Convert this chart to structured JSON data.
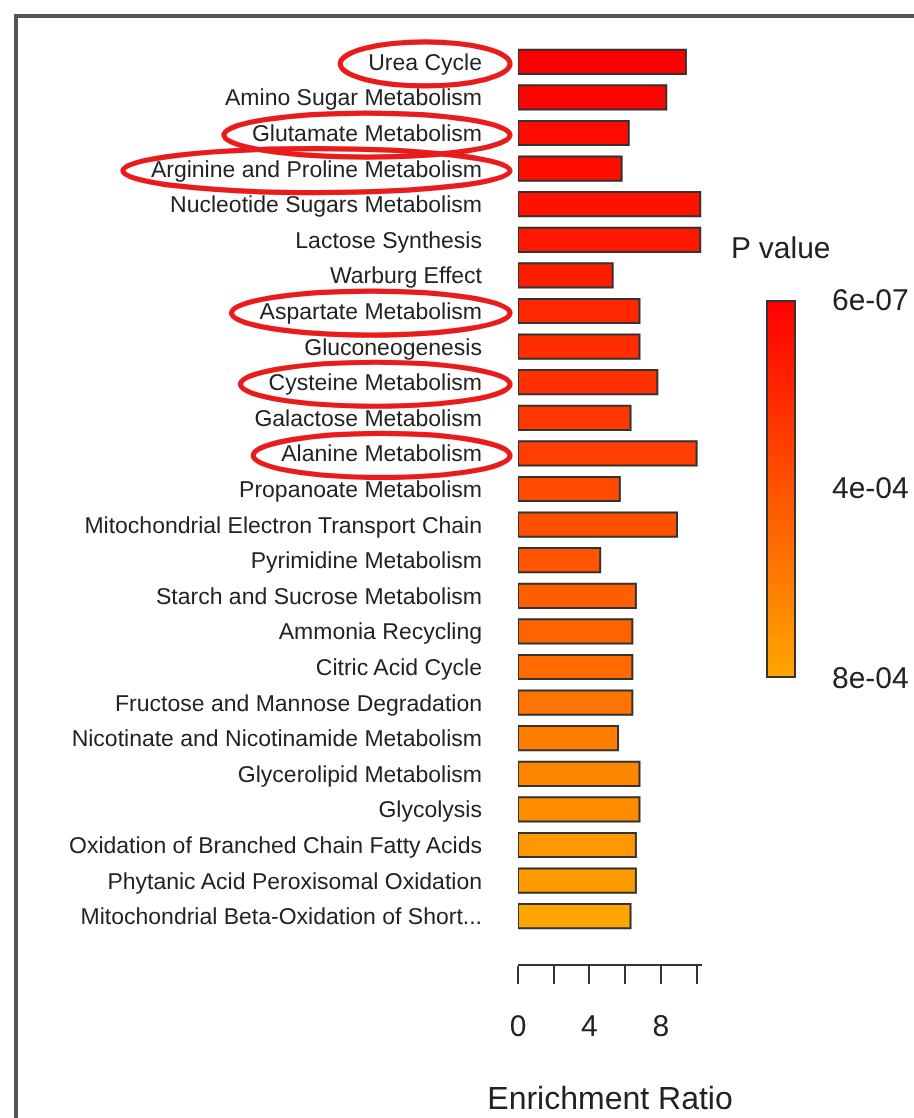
{
  "chart_data": {
    "type": "bar",
    "orientation": "horizontal",
    "categories": [
      "Urea Cycle",
      "Amino Sugar Metabolism",
      "Glutamate Metabolism",
      "Arginine and Proline Metabolism",
      "Nucleotide Sugars Metabolism",
      "Lactose Synthesis",
      "Warburg Effect",
      "Aspartate Metabolism",
      "Gluconeogenesis",
      "Cysteine Metabolism",
      "Galactose Metabolism",
      "Alanine Metabolism",
      "Propanoate Metabolism",
      "Mitochondrial Electron Transport Chain",
      "Pyrimidine Metabolism",
      "Starch and Sucrose Metabolism",
      "Ammonia Recycling",
      "Citric Acid Cycle",
      "Fructose and Mannose Degradation",
      "Nicotinate and Nicotinamide Metabolism",
      "Glycerolipid Metabolism",
      "Glycolysis",
      "Oxidation of Branched Chain Fatty Acids",
      "Phytanic Acid Peroxisomal Oxidation",
      "Mitochondrial Beta-Oxidation of Short..."
    ],
    "values": [
      9.4,
      8.3,
      6.2,
      5.8,
      10.2,
      10.2,
      5.3,
      6.8,
      6.8,
      7.8,
      6.3,
      10.0,
      5.7,
      8.9,
      4.6,
      6.6,
      6.4,
      6.4,
      6.4,
      5.6,
      6.8,
      6.8,
      6.6,
      6.6,
      6.3
    ],
    "cvalues": [
      6e-07,
      2e-05,
      5e-05,
      7e-05,
      9e-05,
      0.00011,
      0.00014,
      0.00019,
      0.00022,
      0.00024,
      0.00027,
      0.0003,
      0.00036,
      0.00039,
      0.00041,
      0.00046,
      0.00048,
      0.00052,
      0.00056,
      0.00061,
      0.00065,
      0.00068,
      0.00073,
      0.00075,
      0.0008
    ],
    "xlim": [
      0,
      10.3
    ],
    "xticks": [
      0,
      {
        "value": 2,
        "label": null
      },
      4,
      {
        "value": 6,
        "label": null
      },
      8,
      {
        "value": 10,
        "label": null
      }
    ],
    "xlabel": "Enrichment Ratio",
    "clabel": "P value",
    "clim": [
      0.0008,
      6e-07
    ],
    "cticks": [
      {
        "value": 6e-07,
        "label": "6e-07"
      },
      {
        "value": 0.0004,
        "label": "4e-04"
      },
      {
        "value": 0.0008,
        "label": "8e-04"
      }
    ]
  }
}
